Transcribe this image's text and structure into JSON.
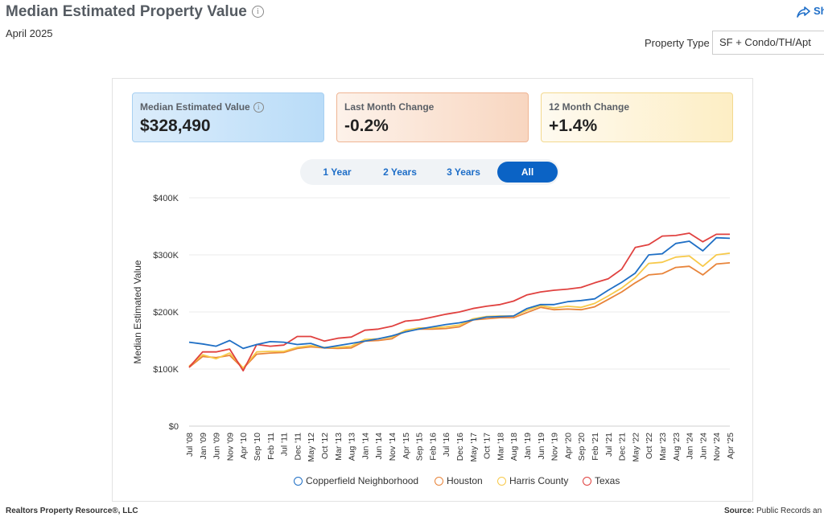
{
  "header": {
    "title": "Median Estimated Property Value",
    "subtitle": "April 2025",
    "share_label": "Sh",
    "property_type_label": "Property Type",
    "property_type_value": "SF + Condo/TH/Apt"
  },
  "cards": [
    {
      "label": "Median Estimated Value",
      "value": "$328,490"
    },
    {
      "label": "Last Month Change",
      "value": "-0.2%"
    },
    {
      "label": "12 Month Change",
      "value": "+1.4%"
    }
  ],
  "range_buttons": [
    "1 Year",
    "2 Years",
    "3 Years",
    "All"
  ],
  "range_selected": "All",
  "footer": {
    "left": "Realtors Property Resource",
    "left_suffix": "®, LLC",
    "right_label": "Source:",
    "right_text": "Public Records an"
  },
  "colors": {
    "Copperfield Neighborhood": "#1f6fc5",
    "Houston": "#e8843a",
    "Harris County": "#f7c94a",
    "Texas": "#e0413f"
  },
  "chart_data": {
    "type": "line",
    "title": "",
    "xlabel": "",
    "ylabel": "Median Estimated Value",
    "ylim": [
      0,
      400000
    ],
    "yticks": [
      0,
      100000,
      200000,
      300000,
      400000
    ],
    "ytick_labels": [
      "$0",
      "$100K",
      "$200K",
      "$300K",
      "$400K"
    ],
    "x_tick_labels": [
      "Jul '08",
      "Jan '09",
      "Jun '09",
      "Nov '09",
      "Apr '10",
      "Sep '10",
      "Feb '11",
      "Jul '11",
      "Dec '11",
      "May '12",
      "Oct '12",
      "Mar '13",
      "Aug '13",
      "Jan '14",
      "Jun '14",
      "Nov '14",
      "Apr '15",
      "Sep '15",
      "Feb '16",
      "Jul '16",
      "Dec '16",
      "May '17",
      "Oct '17",
      "Mar '18",
      "Aug '18",
      "Jan '19",
      "Jun '19",
      "Nov '19",
      "Apr '20",
      "Sep '20",
      "Feb '21",
      "Jul '21",
      "Dec '21",
      "May '22",
      "Oct '22",
      "Mar '23",
      "Aug '23",
      "Jan '24",
      "Jun '24",
      "Nov '24",
      "Apr '25"
    ],
    "x": [
      "Jul '08",
      "Jan '09",
      "Jun '09",
      "Nov '09",
      "Apr '10",
      "Sep '10",
      "Feb '11",
      "Jul '11",
      "Dec '11",
      "May '12",
      "Oct '12",
      "Mar '13",
      "Aug '13",
      "Jan '14",
      "Jun '14",
      "Nov '14",
      "Apr '15",
      "Sep '15",
      "Feb '16",
      "Jul '16",
      "Dec '16",
      "May '17",
      "Oct '17",
      "Mar '18",
      "Aug '18",
      "Jan '19",
      "Jun '19",
      "Nov '19",
      "Apr '20",
      "Sep '20",
      "Feb '21",
      "Jul '21",
      "Dec '21",
      "May '22",
      "Oct '22",
      "Mar '23",
      "Aug '23",
      "Jan '24",
      "Jun '24",
      "Nov '24",
      "Apr '25"
    ],
    "legend_position": "bottom",
    "grid": true,
    "series": [
      {
        "name": "Copperfield Neighborhood",
        "values": [
          147000,
          144000,
          140000,
          150000,
          136000,
          143000,
          148000,
          147000,
          143000,
          145000,
          137000,
          141000,
          145000,
          149000,
          153000,
          158000,
          165000,
          170000,
          174000,
          178000,
          181000,
          186000,
          191000,
          192000,
          193000,
          206000,
          213000,
          213000,
          218000,
          220000,
          223000,
          238000,
          252000,
          268000,
          300000,
          302000,
          320000,
          324000,
          307000,
          330000,
          329000
        ]
      },
      {
        "name": "Houston",
        "values": [
          103000,
          122000,
          120000,
          124000,
          101000,
          126000,
          128000,
          129000,
          136000,
          139000,
          137000,
          136000,
          137000,
          149000,
          150000,
          153000,
          167000,
          170000,
          170000,
          171000,
          174000,
          186000,
          188000,
          190000,
          190000,
          199000,
          208000,
          204000,
          205000,
          204000,
          209000,
          222000,
          235000,
          251000,
          265000,
          267000,
          278000,
          280000,
          265000,
          284000,
          286000
        ]
      },
      {
        "name": "Harris County",
        "values": [
          105000,
          125000,
          118000,
          128000,
          102000,
          130000,
          131000,
          131000,
          138000,
          141000,
          138000,
          138000,
          140000,
          152000,
          153000,
          156000,
          168000,
          172000,
          172000,
          174000,
          177000,
          188000,
          192000,
          193000,
          193000,
          203000,
          211000,
          207000,
          210000,
          208000,
          215000,
          228000,
          242000,
          260000,
          285000,
          287000,
          296000,
          298000,
          280000,
          300000,
          303000
        ]
      },
      {
        "name": "Texas",
        "values": [
          103000,
          130000,
          130000,
          135000,
          97000,
          143000,
          140000,
          142000,
          157000,
          157000,
          149000,
          154000,
          156000,
          168000,
          170000,
          175000,
          184000,
          186000,
          191000,
          196000,
          200000,
          206000,
          210000,
          213000,
          219000,
          230000,
          235000,
          238000,
          240000,
          243000,
          251000,
          258000,
          275000,
          313000,
          318000,
          333000,
          334000,
          338000,
          323000,
          336000,
          336000
        ]
      }
    ]
  }
}
